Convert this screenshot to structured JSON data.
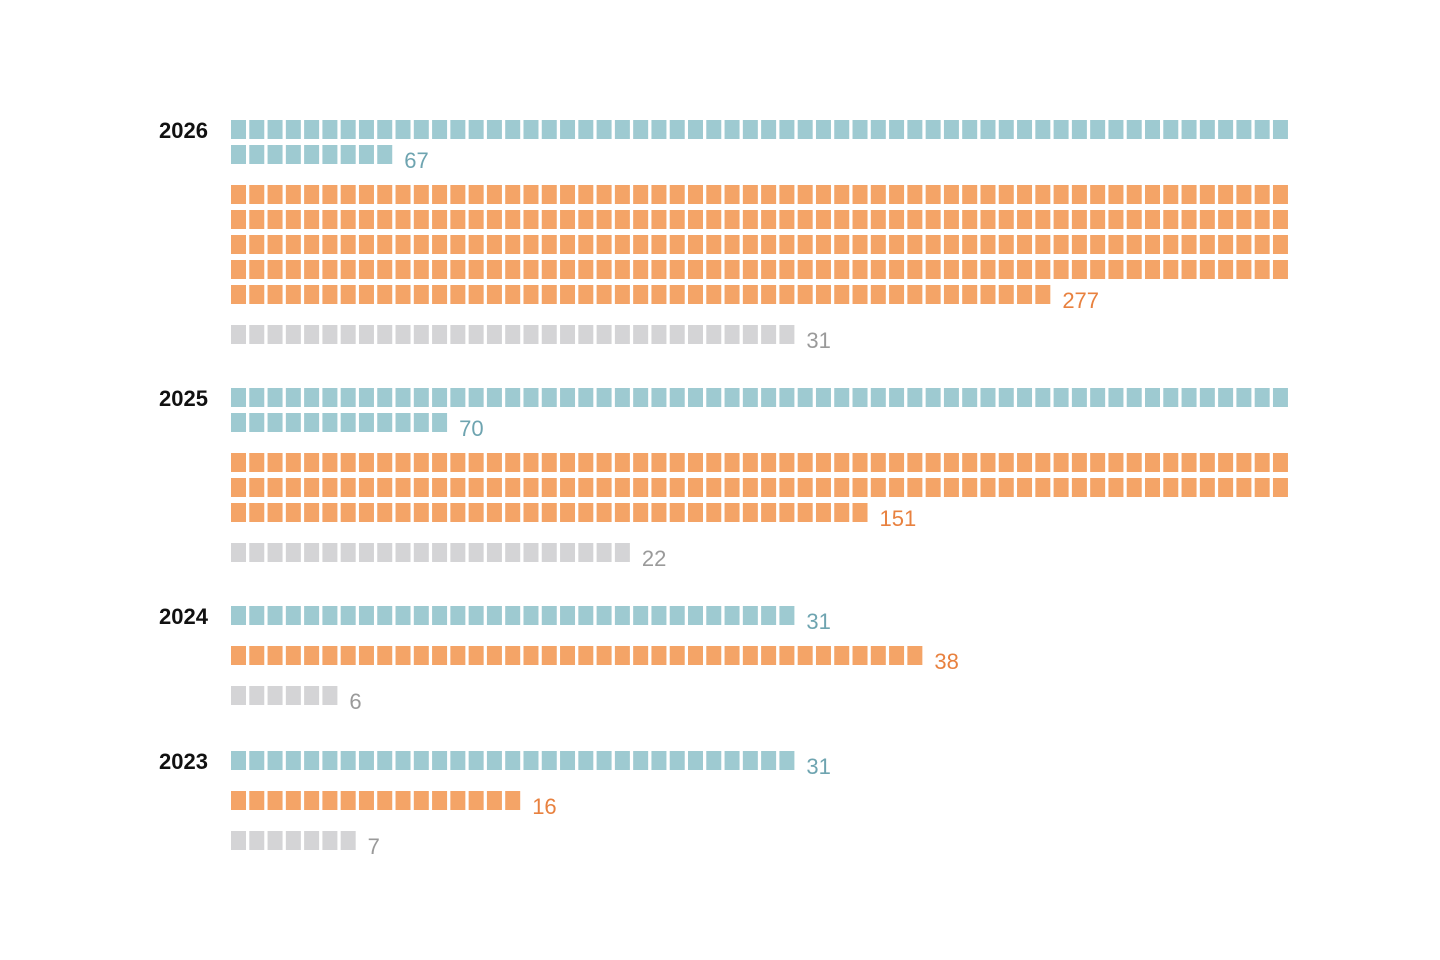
{
  "chart_data": {
    "type": "waffle-bar",
    "units_per_row": 58,
    "colors": {
      "blue": "#9ecad1",
      "orange": "#f4a467",
      "gray": "#d4d4d6",
      "blue_text": "#6ea4b0",
      "orange_text": "#e8813f",
      "gray_text": "#9a9a9a"
    },
    "years": [
      {
        "year": "2026",
        "series": [
          {
            "color": "blue",
            "value": 67
          },
          {
            "color": "orange",
            "value": 277
          },
          {
            "color": "gray",
            "value": 31
          }
        ]
      },
      {
        "year": "2025",
        "series": [
          {
            "color": "blue",
            "value": 70
          },
          {
            "color": "orange",
            "value": 151
          },
          {
            "color": "gray",
            "value": 22
          }
        ]
      },
      {
        "year": "2024",
        "series": [
          {
            "color": "blue",
            "value": 31
          },
          {
            "color": "orange",
            "value": 38
          },
          {
            "color": "gray",
            "value": 6
          }
        ]
      },
      {
        "year": "2023",
        "series": [
          {
            "color": "blue",
            "value": 31
          },
          {
            "color": "orange",
            "value": 16
          },
          {
            "color": "gray",
            "value": 7
          }
        ]
      }
    ]
  }
}
